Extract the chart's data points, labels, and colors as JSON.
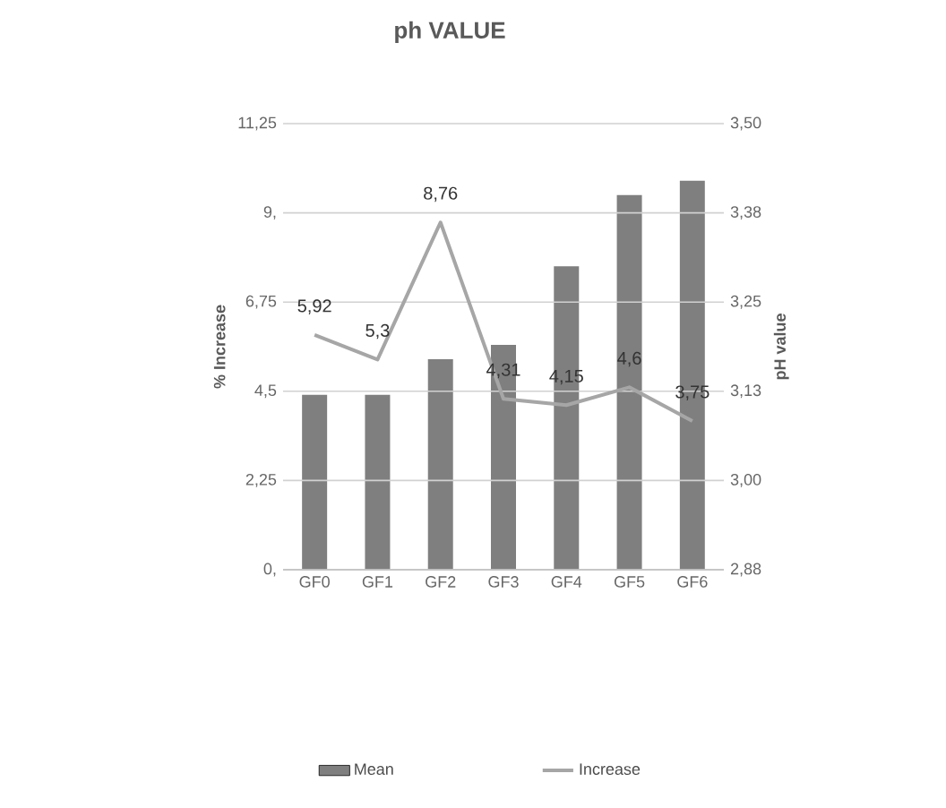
{
  "chart_data": {
    "type": "bar",
    "title": "ph VALUE",
    "ylabel": "% Increase",
    "y2label": "pH value",
    "categories": [
      "GF0",
      "GF1",
      "GF2",
      "GF3",
      "GF4",
      "GF5",
      "GF6"
    ],
    "series": [
      {
        "name": "Mean",
        "axis": "y2",
        "color": "#7f7f7f",
        "values": [
          3.12,
          3.12,
          3.17,
          3.19,
          3.3,
          3.4,
          3.42
        ]
      },
      {
        "name": "Increase",
        "type": "line",
        "axis": "y",
        "color": "#a6a6a6",
        "values": [
          5.92,
          5.3,
          8.76,
          4.31,
          4.15,
          4.6,
          3.75
        ],
        "value_labels": [
          "5,92",
          "5,3",
          "8,76",
          "4,31",
          "4,15",
          "4,6",
          "3,75"
        ]
      }
    ],
    "ylim": [
      0,
      11.25
    ],
    "yticks": [
      {
        "value": 0,
        "label": "0,"
      },
      {
        "value": 2.25,
        "label": "2,25"
      },
      {
        "value": 4.5,
        "label": "4,5"
      },
      {
        "value": 6.75,
        "label": "6,75"
      },
      {
        "value": 9,
        "label": "9,"
      },
      {
        "value": 11.25,
        "label": "11,25"
      }
    ],
    "y2lim": [
      2.875,
      3.5
    ],
    "y2ticks": [
      {
        "value": 2.875,
        "label": "2,88"
      },
      {
        "value": 3.0,
        "label": "3,00"
      },
      {
        "value": 3.125,
        "label": "3,13"
      },
      {
        "value": 3.25,
        "label": "3,25"
      },
      {
        "value": 3.375,
        "label": "3,38"
      },
      {
        "value": 3.5,
        "label": "3,50"
      }
    ],
    "grid": "y",
    "legend": "bottom",
    "marker": "none"
  }
}
